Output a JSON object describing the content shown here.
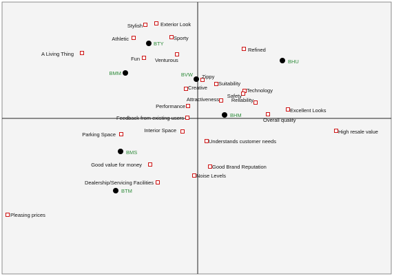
{
  "chart_data": {
    "type": "scatter",
    "title": "",
    "xlabel": "",
    "ylabel": "",
    "grid": false,
    "xlim": [
      -273,
      285
    ],
    "ylim": [
      -225,
      168
    ],
    "colors": {
      "attribute_marker": "#cc1111",
      "brand_point": "#000000",
      "brand_label": "#2e8b3a",
      "attribute_label": "#111111"
    },
    "attributes": [
      {
        "label": "Stylish",
        "x": -76,
        "y": 136
      },
      {
        "label": "Exterior Look",
        "x": -60,
        "y": 138
      },
      {
        "label": "Athletic",
        "x": -93,
        "y": 117
      },
      {
        "label": "Sporty",
        "x": -38,
        "y": 118
      },
      {
        "label": "A Living Thing",
        "x": -168,
        "y": 95
      },
      {
        "label": "Fun",
        "x": -78,
        "y": 88
      },
      {
        "label": "Venturous",
        "x": -30,
        "y": 93
      },
      {
        "label": "Refined",
        "x": 67,
        "y": 101
      },
      {
        "label": "Zippy",
        "x": 7,
        "y": 56
      },
      {
        "label": "Creative",
        "x": -17,
        "y": 43
      },
      {
        "label": "Suitability",
        "x": 27,
        "y": 50
      },
      {
        "label": "Technology",
        "x": 68,
        "y": 40
      },
      {
        "label": "Safety",
        "x": 66,
        "y": 36
      },
      {
        "label": "Attractiveness",
        "x": 34,
        "y": 26
      },
      {
        "label": "Reliability",
        "x": 84,
        "y": 23
      },
      {
        "label": "Performance",
        "x": -14,
        "y": 18
      },
      {
        "label": "Excellent Looks",
        "x": 131,
        "y": 13
      },
      {
        "label": "Feedback from existing users",
        "x": -15,
        "y": 1
      },
      {
        "label": "Overall quality",
        "x": 102,
        "y": 6
      },
      {
        "label": "Interior Space",
        "x": -22,
        "y": -19
      },
      {
        "label": "High resale value",
        "x": 201,
        "y": -18
      },
      {
        "label": "Parking Space",
        "x": -111,
        "y": -23
      },
      {
        "label": "Understands customer needs",
        "x": 13,
        "y": -33
      },
      {
        "label": "Good value for money",
        "x": -69,
        "y": -67
      },
      {
        "label": "Good Brand Reputation",
        "x": 18,
        "y": -70
      },
      {
        "label": "Noise Levels",
        "x": -5,
        "y": -83
      },
      {
        "label": "Dealership/Servicing Facilities",
        "x": -58,
        "y": -93
      },
      {
        "label": "Pleasing prices",
        "x": -276,
        "y": -140
      }
    ],
    "brands": [
      {
        "label": "BTY",
        "x": -71,
        "y": 109
      },
      {
        "label": "BHU",
        "x": 123,
        "y": 84
      },
      {
        "label": "BMM",
        "x": -105,
        "y": 66
      },
      {
        "label": "BVW",
        "x": -2,
        "y": 57
      },
      {
        "label": "BHM",
        "x": 39,
        "y": 5
      },
      {
        "label": "BMS",
        "x": -112,
        "y": -48
      },
      {
        "label": "BTM",
        "x": -119,
        "y": -105
      }
    ]
  }
}
